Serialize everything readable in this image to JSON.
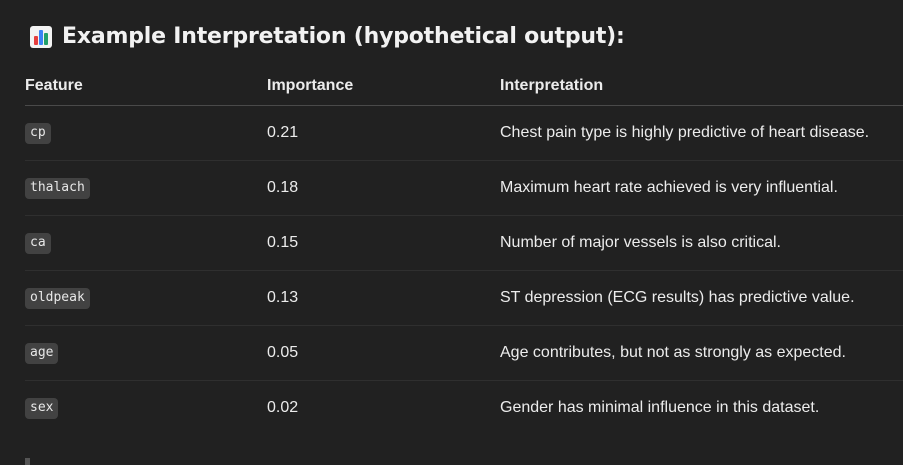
{
  "heading": {
    "icon": "bar-chart-icon",
    "text": "Example Interpretation (hypothetical output):"
  },
  "table": {
    "headers": [
      "Feature",
      "Importance",
      "Interpretation"
    ],
    "rows": [
      {
        "feature": "cp",
        "importance": "0.21",
        "interpretation": "Chest pain type is highly predictive of heart disease."
      },
      {
        "feature": "thalach",
        "importance": "0.18",
        "interpretation": "Maximum heart rate achieved is very influential."
      },
      {
        "feature": "ca",
        "importance": "0.15",
        "interpretation": "Number of major vessels is also critical."
      },
      {
        "feature": "oldpeak",
        "importance": "0.13",
        "interpretation": "ST depression (ECG results) has predictive value."
      },
      {
        "feature": "age",
        "importance": "0.05",
        "interpretation": "Age contributes, but not as strongly as expected."
      },
      {
        "feature": "sex",
        "importance": "0.02",
        "interpretation": "Gender has minimal influence in this dataset."
      }
    ]
  }
}
